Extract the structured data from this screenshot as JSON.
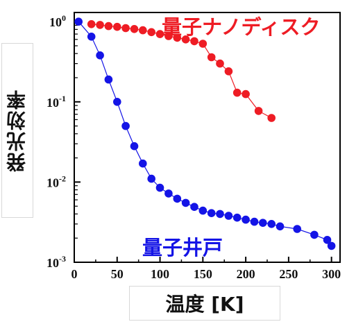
{
  "chart_data": {
    "type": "scatter",
    "xlabel": "温度 [K]",
    "ylabel": "発光効率",
    "xlim": [
      0,
      310
    ],
    "ylim": [
      0.001,
      1.3
    ],
    "yscale": "log",
    "x_ticks": [
      0,
      50,
      100,
      150,
      200,
      250,
      300
    ],
    "y_ticks": [
      {
        "base": "10",
        "exp": "0",
        "value": 1
      },
      {
        "base": "10",
        "exp": "-1",
        "value": 0.1
      },
      {
        "base": "10",
        "exp": "-2",
        "value": 0.01
      },
      {
        "base": "10",
        "exp": "-3",
        "value": 0.001
      }
    ],
    "grid": false,
    "series": [
      {
        "name": "量子ナノディスク",
        "color": "#ee1c24",
        "x": [
          20,
          30,
          40,
          50,
          60,
          70,
          80,
          90,
          100,
          110,
          120,
          130,
          140,
          150,
          160,
          170,
          180,
          190,
          200,
          215,
          230
        ],
        "y": [
          0.93,
          0.91,
          0.88,
          0.86,
          0.83,
          0.81,
          0.78,
          0.74,
          0.7,
          0.66,
          0.63,
          0.6,
          0.57,
          0.53,
          0.36,
          0.3,
          0.24,
          0.13,
          0.125,
          0.077,
          0.063
        ]
      },
      {
        "name": "量子井戸",
        "color": "#1414e6",
        "x": [
          5,
          20,
          30,
          40,
          50,
          60,
          70,
          80,
          90,
          100,
          110,
          120,
          130,
          140,
          150,
          160,
          170,
          180,
          190,
          200,
          210,
          220,
          230,
          240,
          260,
          280,
          295,
          300
        ],
        "y": [
          1.0,
          0.65,
          0.38,
          0.19,
          0.1,
          0.05,
          0.028,
          0.017,
          0.011,
          0.0085,
          0.0072,
          0.0062,
          0.0055,
          0.0049,
          0.0044,
          0.0041,
          0.004,
          0.0038,
          0.0036,
          0.0034,
          0.0032,
          0.0031,
          0.003,
          0.0028,
          0.0026,
          0.0022,
          0.0019,
          0.0016
        ]
      }
    ]
  }
}
